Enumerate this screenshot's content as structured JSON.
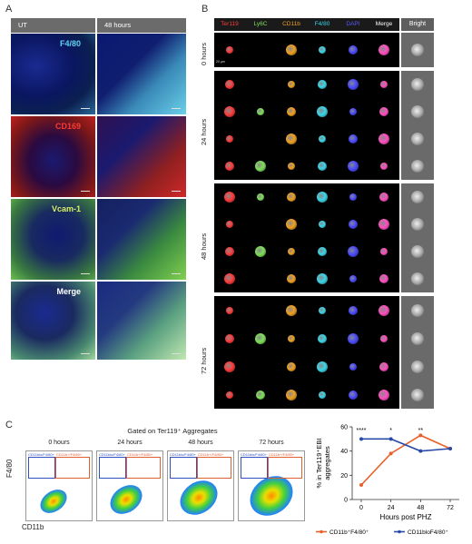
{
  "panel_a": {
    "letter": "A",
    "columns": [
      "UT",
      "48 hours"
    ],
    "rows": [
      {
        "label": "F4/80",
        "label_color": "#5fd0f0"
      },
      {
        "label": "CD169",
        "label_color": "#ff3a30"
      },
      {
        "label": "Vcam-1",
        "label_color": "#d8f060"
      },
      {
        "label": "Merge",
        "label_color": "#ffffff"
      }
    ]
  },
  "panel_b": {
    "letter": "B",
    "channels": [
      {
        "label": "Ter119",
        "color": "#ff3b3b"
      },
      {
        "label": "Ly6C",
        "color": "#7fe05a"
      },
      {
        "label": "CD11b",
        "color": "#f0a020"
      },
      {
        "label": "F4/80",
        "color": "#3ad6e8"
      },
      {
        "label": "DAPI",
        "color": "#5a5aff"
      },
      {
        "label": "Merge",
        "color": "#ffffff"
      },
      {
        "label": "Bright",
        "color": "#ffffff"
      }
    ],
    "timepoints": [
      "0 hours",
      "24 hours",
      "48 hours",
      "72 hours"
    ],
    "scale_text": "20 µm"
  },
  "panel_c": {
    "letter": "C",
    "title": "Gated on Ter119⁺ Aggregates",
    "plots": [
      "0 hours",
      "24 hours",
      "48 hours",
      "72 hours"
    ],
    "gate_left": "CD11blo/F4/80+",
    "gate_right": "CD11b+/F4/80+",
    "ylabel": "F4/80",
    "xlabel": "CD11b"
  },
  "chart_data": {
    "type": "line",
    "x": [
      0,
      24,
      48,
      72
    ],
    "xlabel": "Hours post PHZ",
    "ylabel": "% in Ter119⁺EBI aggregates",
    "ylim": [
      0,
      60
    ],
    "yticks": [
      0,
      20,
      40,
      60
    ],
    "xticks": [
      0,
      24,
      48,
      72
    ],
    "series": [
      {
        "name": "CD11b⁺F4/80⁺",
        "color": "#e8602a",
        "values": [
          12,
          38,
          53,
          42
        ]
      },
      {
        "name": "CD11bloF4/80⁺",
        "color": "#2a4aa8",
        "values": [
          50,
          50,
          40,
          42
        ]
      }
    ],
    "annotations": [
      {
        "x": 0,
        "text": "****"
      },
      {
        "x": 24,
        "text": "*"
      },
      {
        "x": 48,
        "text": "**"
      }
    ]
  }
}
